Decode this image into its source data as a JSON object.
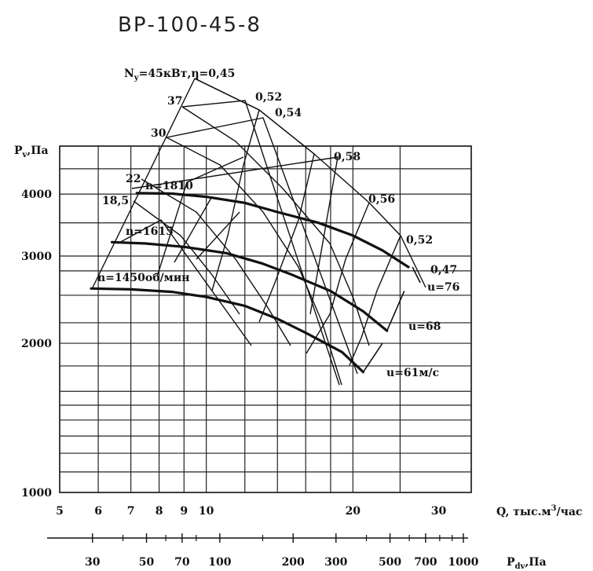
{
  "chart_data": {
    "type": "line",
    "title": "ВР-100-45-8",
    "ylabel": "Pv,Па",
    "xlabel": "Q, тыс.м3/час",
    "x2label": "Pdv,Па",
    "xlim": [
      5,
      35
    ],
    "ylim": [
      1000,
      5000
    ],
    "x_scale": "log",
    "y_scale": "log",
    "grid": true,
    "x_ticks": [
      5,
      6,
      7,
      8,
      9,
      10,
      20,
      30
    ],
    "x_tick_labels": [
      "5",
      "6",
      "7",
      "8",
      "9",
      "10",
      "20",
      "30"
    ],
    "y_ticks": [
      1000,
      2000,
      3000,
      4000
    ],
    "y_tick_labels": [
      "1000",
      "2000",
      "3000",
      "4000"
    ],
    "x2_ticks": [
      30,
      50,
      70,
      100,
      200,
      300,
      500,
      700,
      1000
    ],
    "x2_tick_labels": [
      "30",
      "50",
      "70",
      "100",
      "200",
      "300",
      "500",
      "700",
      "1000"
    ],
    "series": [
      {
        "name": "n=1810",
        "x": [
          7.2,
          8.5,
          10,
          12,
          14,
          17,
          20,
          23,
          26
        ],
        "y": [
          4020,
          4010,
          3950,
          3840,
          3680,
          3500,
          3300,
          3080,
          2850
        ]
      },
      {
        "name": "n=1615",
        "x": [
          6.4,
          7.5,
          9,
          11,
          13,
          15,
          18,
          21,
          23.5
        ],
        "y": [
          3200,
          3180,
          3130,
          3040,
          2900,
          2750,
          2550,
          2320,
          2120
        ]
      },
      {
        "name": "n=1450об/мин",
        "x": [
          5.8,
          7,
          8.5,
          10,
          12,
          14,
          16,
          19,
          21
        ],
        "y": [
          2580,
          2570,
          2540,
          2480,
          2380,
          2240,
          2100,
          1920,
          1750
        ]
      }
    ],
    "efficiency_labels": [
      "η=0,45",
      "0,52",
      "0,54",
      "0,58",
      "0,56",
      "0,52",
      "0,47"
    ],
    "power_labels": [
      "Ny=45кВт",
      "37",
      "30",
      "22",
      "18,5"
    ],
    "speed_labels": [
      "u=76",
      "u=68",
      "u=61м/с"
    ],
    "speed_lines": [
      {
        "label": "u=76",
        "x": [
          26.5,
          27.5
        ],
        "y": [
          2850,
          2650
        ]
      },
      {
        "label": "u=68",
        "x": [
          23.5,
          25.5
        ],
        "y": [
          2120,
          2550
        ]
      },
      {
        "label": "u=61м/с",
        "x": [
          21,
          23
        ],
        "y": [
          1750,
          2000
        ]
      }
    ]
  },
  "texts": {
    "title": "ВР-100-45-8",
    "ylabel_main": "P",
    "ylabel_sub": "v",
    "ylabel_tail": ",Па",
    "xlabel_main": "Q, тыс.м",
    "xlabel_sup": "3",
    "xlabel_tail": "/час",
    "x2label_main": "P",
    "x2label_sub": "dv",
    "x2label_tail": ",Па",
    "eta_head_main": "N",
    "eta_head_sub": "y",
    "eta_head_tail": "=45кВт,η=0,45",
    "p37": "37",
    "p30": "30",
    "p22": "22",
    "p185": "18,5",
    "e052a": "0,52",
    "e054": "0,54",
    "e058": "0,58",
    "e056": "0,56",
    "e052b": "0,52",
    "e047": "0,47",
    "n1810": "n=1810",
    "n1615": "n=1615",
    "n1450": "n=1450об/мин",
    "u76": "u=76",
    "u68": "u=68",
    "u61": "u=61м/с"
  }
}
